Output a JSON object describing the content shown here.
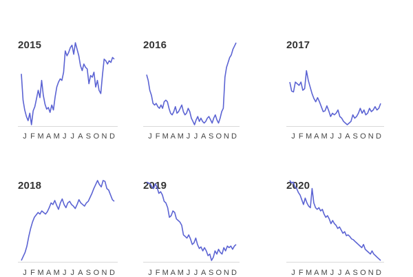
{
  "chart_data": {
    "type": "line",
    "x_tick_labels": [
      "J",
      "F",
      "M",
      "A",
      "M",
      "J",
      "J",
      "A",
      "S",
      "O",
      "N",
      "D"
    ],
    "series_color": "#5b63d3",
    "axis_color": "#d9d9d9",
    "grid": false,
    "panels": [
      {
        "title": "2015",
        "values": [
          0.62,
          0.3,
          0.18,
          0.1,
          0.05,
          0.14,
          0.0,
          0.17,
          0.22,
          0.32,
          0.42,
          0.33,
          0.54,
          0.36,
          0.25,
          0.19,
          0.21,
          0.15,
          0.24,
          0.18,
          0.34,
          0.46,
          0.52,
          0.56,
          0.54,
          0.64,
          0.9,
          0.84,
          0.88,
          0.94,
          0.97,
          0.86,
          1.0,
          0.92,
          0.84,
          0.72,
          0.66,
          0.74,
          0.7,
          0.68,
          0.5,
          0.6,
          0.58,
          0.64,
          0.46,
          0.54,
          0.42,
          0.38,
          0.6,
          0.8,
          0.78,
          0.74,
          0.78,
          0.76,
          0.82,
          0.8
        ]
      },
      {
        "title": "2016",
        "values": [
          0.61,
          0.54,
          0.42,
          0.36,
          0.26,
          0.24,
          0.26,
          0.22,
          0.2,
          0.24,
          0.2,
          0.28,
          0.3,
          0.28,
          0.2,
          0.14,
          0.12,
          0.16,
          0.22,
          0.14,
          0.16,
          0.2,
          0.24,
          0.16,
          0.12,
          0.14,
          0.2,
          0.16,
          0.08,
          0.04,
          0.0,
          0.06,
          0.1,
          0.04,
          0.08,
          0.04,
          0.02,
          0.04,
          0.08,
          0.1,
          0.06,
          0.02,
          0.08,
          0.12,
          0.06,
          0.02,
          0.08,
          0.16,
          0.2,
          0.58,
          0.7,
          0.76,
          0.82,
          0.85,
          0.92,
          0.96,
          1.0
        ]
      },
      {
        "title": "2017",
        "values": [
          0.52,
          0.41,
          0.4,
          0.52,
          0.5,
          0.48,
          0.52,
          0.42,
          0.44,
          0.66,
          0.54,
          0.46,
          0.38,
          0.32,
          0.28,
          0.33,
          0.28,
          0.22,
          0.16,
          0.17,
          0.23,
          0.17,
          0.1,
          0.14,
          0.12,
          0.14,
          0.18,
          0.1,
          0.08,
          0.04,
          0.02,
          0.0,
          0.02,
          0.04,
          0.12,
          0.08,
          0.1,
          0.14,
          0.2,
          0.14,
          0.18,
          0.12,
          0.14,
          0.2,
          0.16,
          0.18,
          0.22,
          0.18,
          0.2,
          0.26
        ]
      },
      {
        "title": "2018",
        "values": [
          0.0,
          0.05,
          0.1,
          0.18,
          0.3,
          0.4,
          0.48,
          0.54,
          0.57,
          0.6,
          0.58,
          0.62,
          0.6,
          0.58,
          0.61,
          0.66,
          0.72,
          0.7,
          0.75,
          0.69,
          0.64,
          0.72,
          0.77,
          0.7,
          0.66,
          0.72,
          0.74,
          0.7,
          0.68,
          0.65,
          0.7,
          0.76,
          0.72,
          0.7,
          0.68,
          0.72,
          0.74,
          0.79,
          0.84,
          0.9,
          0.95,
          1.0,
          0.95,
          0.92,
          1.0,
          0.99,
          0.9,
          0.88,
          0.82,
          0.76,
          0.74
        ]
      },
      {
        "title": "2019",
        "values": [
          0.98,
          0.97,
          0.96,
          0.92,
          0.9,
          0.96,
          0.91,
          0.84,
          0.86,
          0.82,
          0.74,
          0.72,
          0.66,
          0.54,
          0.56,
          0.62,
          0.6,
          0.52,
          0.5,
          0.48,
          0.44,
          0.32,
          0.3,
          0.28,
          0.32,
          0.27,
          0.2,
          0.22,
          0.28,
          0.2,
          0.15,
          0.17,
          0.12,
          0.16,
          0.12,
          0.06,
          0.08,
          0.0,
          0.04,
          0.12,
          0.08,
          0.14,
          0.1,
          0.08,
          0.16,
          0.12,
          0.18,
          0.16,
          0.18,
          0.14,
          0.18,
          0.2
        ]
      },
      {
        "title": "2020",
        "values": [
          1.0,
          0.97,
          0.98,
          0.92,
          0.9,
          0.85,
          0.82,
          0.76,
          0.7,
          0.78,
          0.72,
          0.68,
          0.66,
          0.9,
          0.72,
          0.66,
          0.64,
          0.66,
          0.62,
          0.64,
          0.58,
          0.54,
          0.56,
          0.52,
          0.46,
          0.5,
          0.46,
          0.44,
          0.4,
          0.42,
          0.38,
          0.34,
          0.36,
          0.31,
          0.32,
          0.3,
          0.27,
          0.26,
          0.24,
          0.22,
          0.2,
          0.18,
          0.16,
          0.2,
          0.14,
          0.12,
          0.1,
          0.08,
          0.12,
          0.08,
          0.06,
          0.04,
          0.02,
          0.0
        ]
      }
    ]
  }
}
